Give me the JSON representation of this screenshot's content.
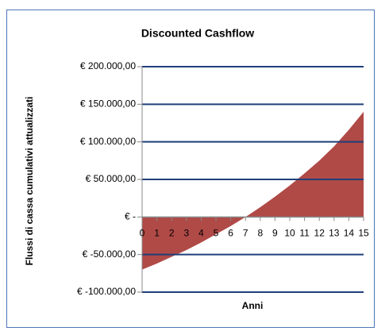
{
  "chart_data": {
    "type": "area",
    "title": "Discounted Cashflow",
    "x_label": "Anni",
    "y_label": "Flussi di cassa cumulativi attualizzati",
    "x": [
      0,
      1,
      2,
      3,
      4,
      5,
      6,
      7,
      8,
      9,
      10,
      11,
      12,
      13,
      14,
      15
    ],
    "values": [
      -70000,
      -62000,
      -53000,
      -44000,
      -34000,
      -23000,
      -12000,
      0,
      13000,
      27000,
      42000,
      58000,
      75000,
      94000,
      116000,
      140000
    ],
    "color": "#b04a47",
    "xlim": [
      0,
      15
    ],
    "xticks": [
      0,
      1,
      2,
      3,
      4,
      5,
      6,
      7,
      8,
      9,
      10,
      11,
      12,
      13,
      14,
      15
    ],
    "ylim": [
      -100000,
      200000
    ],
    "yticks": [
      {
        "value": -100000,
        "label": "€ -100.000,00"
      },
      {
        "value": -50000,
        "label": "€ -50.000,00"
      },
      {
        "value": 0,
        "label": "€ -"
      },
      {
        "value": 50000,
        "label": "€ 50.000,00"
      },
      {
        "value": 100000,
        "label": "€ 100.000,00"
      },
      {
        "value": 150000,
        "label": "€ 150.000,00"
      },
      {
        "value": 200000,
        "label": "€ 200.000,00"
      }
    ],
    "grid": true
  }
}
